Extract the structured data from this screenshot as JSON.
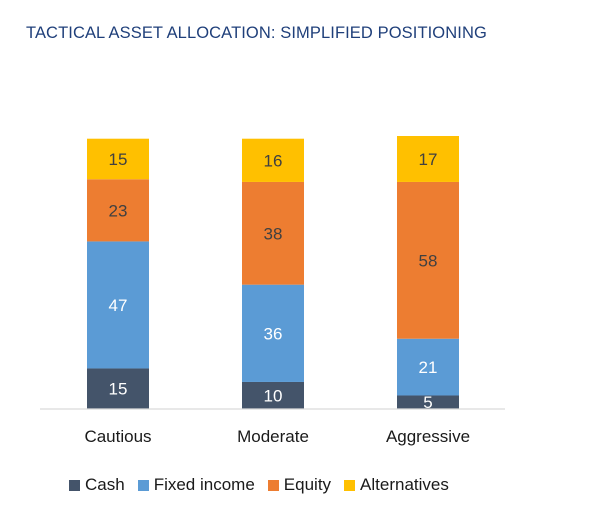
{
  "chart_data": {
    "type": "bar",
    "stacked": true,
    "title": "TACTICAL ASSET ALLOCATION: SIMPLIFIED POSITIONING",
    "categories": [
      "Cautious",
      "Moderate",
      "Aggressive"
    ],
    "series": [
      {
        "name": "Cash",
        "values": [
          15,
          10,
          5
        ],
        "color": "#44546a",
        "label_color": "#ffffff"
      },
      {
        "name": "Fixed income",
        "values": [
          47,
          36,
          21
        ],
        "color": "#5b9bd5",
        "label_color": "#ffffff"
      },
      {
        "name": "Equity",
        "values": [
          23,
          38,
          58
        ],
        "color": "#ed7d31",
        "label_color": "#404040"
      },
      {
        "name": "Alternatives",
        "values": [
          15,
          16,
          17
        ],
        "color": "#ffc000",
        "label_color": "#404040"
      }
    ],
    "ylim": [
      0,
      101
    ],
    "grid": false,
    "legend_position": "bottom"
  }
}
